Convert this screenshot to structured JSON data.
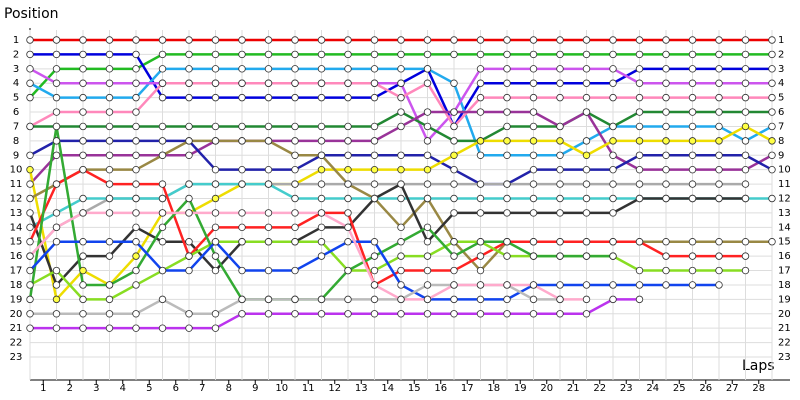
{
  "chart_data": {
    "type": "lap",
    "y_label": "Position",
    "x_label": "Laps",
    "x": [
      0,
      1,
      2,
      3,
      4,
      5,
      6,
      7,
      8,
      9,
      10,
      11,
      12,
      13,
      14,
      15,
      16,
      17,
      18,
      19,
      20,
      21,
      22,
      23,
      24,
      25,
      26,
      27,
      28
    ],
    "xticks": [
      1,
      2,
      3,
      4,
      5,
      6,
      7,
      8,
      9,
      10,
      11,
      12,
      13,
      14,
      15,
      16,
      17,
      18,
      19,
      20,
      21,
      22,
      23,
      24,
      25,
      26,
      27,
      28
    ],
    "ylim": [
      1,
      23
    ],
    "yticks": [
      1,
      2,
      3,
      4,
      5,
      6,
      7,
      8,
      9,
      10,
      11,
      12,
      13,
      14,
      15,
      16,
      17,
      18,
      19,
      20,
      21,
      22,
      23
    ],
    "grid": true,
    "series": [
      {
        "color": "#ee0000",
        "values": [
          1,
          1,
          1,
          1,
          1,
          1,
          1,
          1,
          1,
          1,
          1,
          1,
          1,
          1,
          1,
          1,
          1,
          1,
          1,
          1,
          1,
          1,
          1,
          1,
          1,
          1,
          1,
          1,
          1
        ]
      },
      {
        "color": "#22bb22",
        "values": [
          5,
          3,
          3,
          3,
          3,
          2,
          2,
          2,
          2,
          2,
          2,
          2,
          2,
          2,
          2,
          2,
          2,
          2,
          2,
          2,
          2,
          2,
          2,
          2,
          2,
          2,
          2,
          2,
          2
        ]
      },
      {
        "color": "#0000dd",
        "values": [
          2,
          2,
          2,
          2,
          2,
          5,
          5,
          5,
          5,
          5,
          5,
          5,
          5,
          5,
          4,
          3,
          7,
          4,
          4,
          4,
          4,
          4,
          4,
          3,
          3,
          3,
          3,
          3,
          3
        ]
      },
      {
        "color": "#22aaee",
        "values": [
          4,
          5,
          5,
          5,
          5,
          3,
          3,
          3,
          3,
          3,
          3,
          3,
          3,
          3,
          3,
          3,
          4,
          9,
          9,
          9,
          9,
          8,
          7,
          7,
          7,
          7,
          7,
          8,
          7
        ]
      },
      {
        "color": "#cc55ee",
        "values": [
          3,
          4,
          4,
          4,
          4,
          4,
          4,
          4,
          4,
          4,
          4,
          4,
          4,
          4,
          4,
          8,
          6,
          3,
          3,
          3,
          3,
          3,
          3,
          4,
          4,
          4,
          4,
          4,
          4
        ]
      },
      {
        "color": "#ff88bb",
        "values": [
          7,
          6,
          6,
          6,
          6,
          4,
          4,
          4,
          4,
          4,
          4,
          4,
          4,
          4,
          5,
          4,
          7,
          5,
          5,
          5,
          5,
          5,
          5,
          5,
          5,
          5,
          5,
          5,
          5
        ]
      },
      {
        "color": "#228833",
        "values": [
          7,
          7,
          7,
          7,
          7,
          7,
          7,
          7,
          7,
          7,
          7,
          7,
          7,
          7,
          6,
          7,
          8,
          8,
          7,
          7,
          7,
          6,
          7,
          6,
          6,
          6,
          6,
          6,
          6
        ]
      },
      {
        "color": "#993399",
        "values": [
          11,
          9,
          9,
          9,
          9,
          9,
          9,
          8,
          8,
          8,
          8,
          8,
          8,
          8,
          7,
          6,
          6,
          6,
          6,
          6,
          7,
          6,
          9,
          10,
          10,
          10,
          10,
          10,
          9
        ]
      },
      {
        "color": "#2222aa",
        "values": [
          9,
          8,
          8,
          8,
          8,
          8,
          8,
          10,
          10,
          10,
          10,
          9,
          9,
          9,
          9,
          9,
          10,
          11,
          11,
          10,
          10,
          10,
          10,
          9,
          9,
          9,
          9,
          9,
          10
        ]
      },
      {
        "color": "#eedd00",
        "values": [
          10,
          19,
          17,
          18,
          16,
          13,
          13,
          12,
          11,
          11,
          11,
          10,
          10,
          10,
          10,
          10,
          9,
          8,
          8,
          8,
          8,
          9,
          8,
          8,
          8,
          8,
          8,
          7,
          8
        ]
      },
      {
        "color": "#998844",
        "values": [
          12,
          11,
          10,
          10,
          10,
          9,
          8,
          8,
          8,
          8,
          9,
          9,
          11,
          12,
          14,
          12,
          15,
          17,
          15,
          15,
          15,
          15,
          15,
          15,
          15,
          15,
          15,
          15,
          15
        ]
      },
      {
        "color": "#aaaaaa",
        "values": [
          16,
          14,
          13,
          12,
          12,
          12,
          11,
          11,
          11,
          11,
          11,
          11,
          11,
          11,
          11,
          11,
          11,
          11,
          11,
          11,
          11,
          11,
          11,
          11,
          11,
          11,
          11,
          11,
          null
        ]
      },
      {
        "color": "#44cccc",
        "values": [
          14,
          13,
          12,
          12,
          12,
          12,
          11,
          11,
          11,
          11,
          12,
          12,
          12,
          12,
          12,
          12,
          12,
          12,
          12,
          12,
          12,
          12,
          12,
          12,
          12,
          12,
          12,
          12,
          12
        ]
      },
      {
        "color": "#333333",
        "values": [
          13,
          18,
          16,
          16,
          14,
          15,
          15,
          17,
          15,
          15,
          15,
          14,
          14,
          12,
          11,
          15,
          13,
          13,
          13,
          13,
          13,
          13,
          13,
          12,
          12,
          12,
          12,
          12,
          null
        ]
      },
      {
        "color": "#ff2222",
        "values": [
          15,
          11,
          10,
          11,
          11,
          11,
          16,
          14,
          14,
          14,
          14,
          13,
          13,
          18,
          17,
          17,
          17,
          16,
          15,
          15,
          15,
          15,
          15,
          15,
          16,
          16,
          16,
          16,
          null
        ]
      },
      {
        "color": "#88dd22",
        "values": [
          18,
          17,
          19,
          19,
          18,
          17,
          16,
          15,
          15,
          15,
          15,
          15,
          17,
          17,
          16,
          16,
          15,
          15,
          16,
          16,
          16,
          16,
          16,
          17,
          17,
          17,
          17,
          17,
          null
        ]
      },
      {
        "color": "#33aa33",
        "values": [
          19,
          7,
          18,
          18,
          17,
          14,
          12,
          16,
          19,
          19,
          19,
          19,
          17,
          16,
          15,
          14,
          16,
          15,
          15,
          16,
          16,
          16,
          16,
          null,
          null,
          null,
          null,
          null,
          null
        ]
      },
      {
        "color": "#1144ee",
        "values": [
          17,
          15,
          15,
          15,
          15,
          17,
          17,
          15,
          17,
          17,
          17,
          16,
          15,
          15,
          18,
          19,
          19,
          19,
          19,
          18,
          18,
          18,
          18,
          18,
          18,
          18,
          18,
          null,
          null
        ]
      },
      {
        "color": "#bbbbbb",
        "values": [
          20,
          20,
          20,
          20,
          20,
          19,
          20,
          20,
          19,
          19,
          19,
          19,
          19,
          19,
          19,
          18,
          18,
          18,
          18,
          19,
          19,
          null,
          null,
          null,
          null,
          null,
          null,
          null,
          null
        ]
      },
      {
        "color": "#bb33ee",
        "values": [
          21,
          21,
          21,
          21,
          21,
          21,
          21,
          21,
          20,
          20,
          20,
          20,
          20,
          20,
          20,
          20,
          20,
          20,
          20,
          20,
          20,
          20,
          19,
          19,
          null,
          null,
          null,
          null,
          null
        ]
      },
      {
        "color": "#ffaacc",
        "values": [
          16,
          14,
          13,
          13,
          13,
          13,
          13,
          13,
          13,
          13,
          13,
          13,
          14,
          18,
          19,
          19,
          18,
          18,
          18,
          18,
          19,
          19,
          null,
          null,
          null,
          null,
          null,
          null,
          null
        ]
      }
    ]
  }
}
